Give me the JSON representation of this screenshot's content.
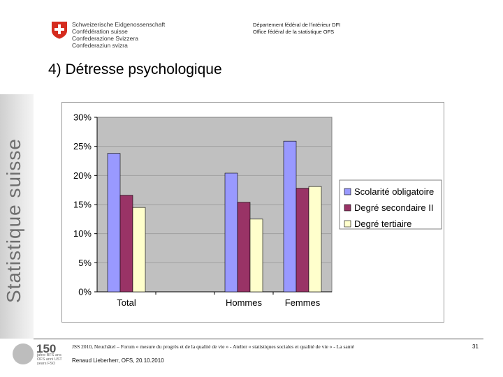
{
  "header": {
    "confederation_names": [
      "Schweizerische Eidgenossenschaft",
      "Confédération suisse",
      "Confederazione Svizzera",
      "Confederaziun svizra"
    ],
    "department": "Département fédéral de l'intérieur DFI",
    "office": "Office fédéral de la statistique OFS"
  },
  "slide": {
    "title": "4) Détresse psychologique",
    "side_band_text": "Statistique suisse"
  },
  "chart_data": {
    "type": "bar",
    "categories": [
      "Total",
      "",
      "Hommes",
      "Femmes"
    ],
    "series": [
      {
        "name": "Scolarité obligatoire",
        "color": "#9999ff",
        "values": [
          23.8,
          null,
          20.4,
          25.9
        ]
      },
      {
        "name": "Degré secondaire II",
        "color": "#993366",
        "values": [
          16.6,
          null,
          15.4,
          17.8
        ]
      },
      {
        "name": "Degré tertiaire",
        "color": "#ffffcc",
        "values": [
          14.5,
          null,
          12.5,
          18.1
        ]
      }
    ],
    "y_ticks": [
      "0%",
      "5%",
      "10%",
      "15%",
      "20%",
      "25%",
      "30%"
    ],
    "ylim": [
      0,
      30
    ],
    "plot_background": "#c0c0c0",
    "grid": true,
    "legend_position": "right"
  },
  "footer": {
    "logo_number": "150",
    "logo_small_text": "jahre BFS ans OFS anni UST years FSO",
    "event_text": "JSS 2010, Neuchâtel – Forum « mesure du progrès et de la qualité de vie » - Atelier « statistiques sociales et qualité de vie » - La santé",
    "author": "Renaud Lieberherr, OFS, 20.10.2010",
    "page_number": "31"
  },
  "colors": {
    "flag_red": "#d52b1e",
    "frame_border": "#9a9a9a"
  }
}
